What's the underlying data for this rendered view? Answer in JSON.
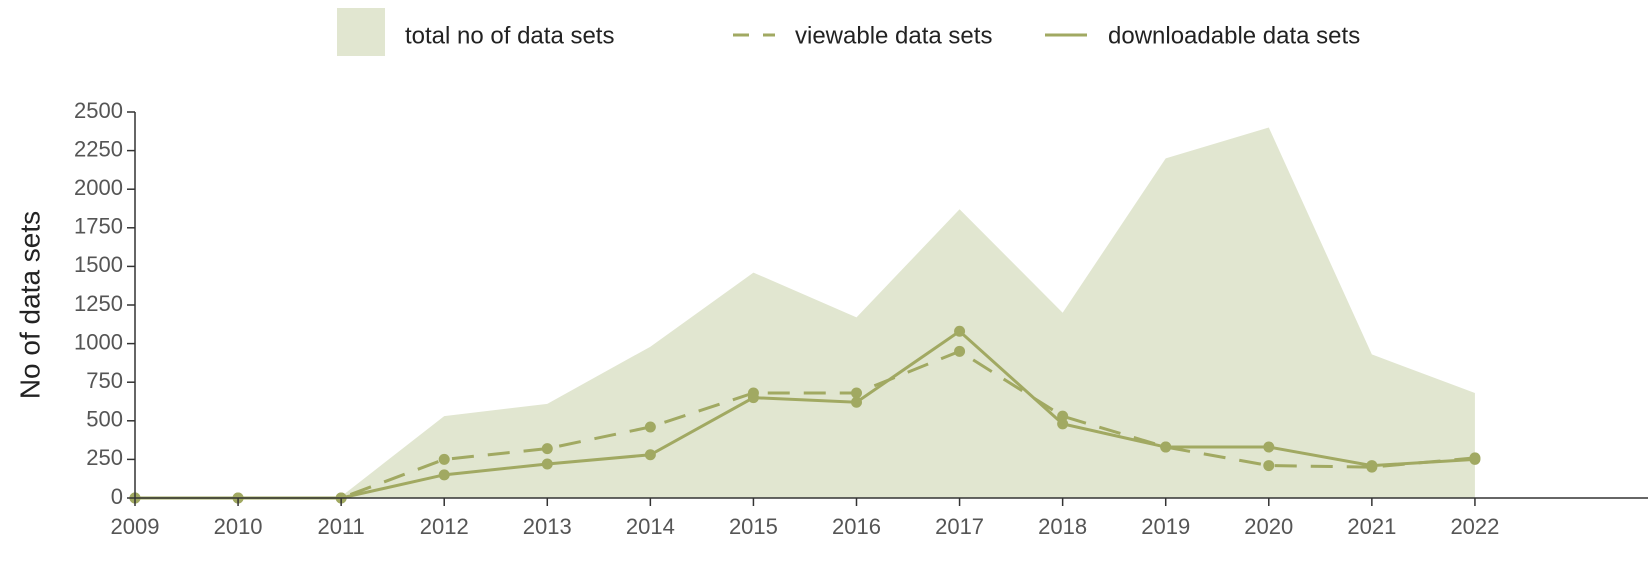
{
  "chart_data": {
    "type": "line",
    "y_label": "No of data sets",
    "x": [
      2009,
      2010,
      2011,
      2012,
      2013,
      2014,
      2015,
      2016,
      2017,
      2018,
      2019,
      2020,
      2021,
      2022
    ],
    "series": [
      {
        "name": "total no of data sets",
        "color": "#e1e6d0",
        "area": true,
        "values": [
          0,
          0,
          10,
          530,
          610,
          980,
          1460,
          1170,
          1870,
          1200,
          2200,
          2400,
          930,
          680
        ]
      },
      {
        "name": "viewable data sets",
        "color": "#a1a962",
        "dashed": true,
        "values": [
          0,
          0,
          0,
          250,
          320,
          460,
          680,
          680,
          950,
          530,
          330,
          210,
          200,
          260
        ]
      },
      {
        "name": "downloadable data sets",
        "color": "#a1a962",
        "values": [
          0,
          0,
          0,
          150,
          220,
          280,
          650,
          620,
          1080,
          480,
          330,
          330,
          210,
          250
        ]
      }
    ],
    "xlim": [
      2009,
      2023
    ],
    "xticks": [
      2009,
      2010,
      2011,
      2012,
      2013,
      2014,
      2015,
      2016,
      2017,
      2018,
      2019,
      2020,
      2021,
      2022
    ],
    "ylim": [
      0,
      2500
    ],
    "yticks": [
      0,
      250,
      500,
      750,
      1000,
      1250,
      1500,
      1750,
      2000,
      2250,
      2500
    ],
    "legend": "top"
  }
}
